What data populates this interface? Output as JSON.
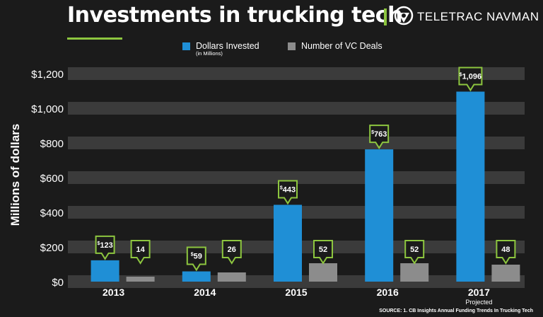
{
  "title": "Investments in trucking tech",
  "brand": {
    "name": "TELETRAC NAVMAN"
  },
  "legend": {
    "dollars_label": "Dollars Invested",
    "dollars_sub": "(in Millions)",
    "deals_label": "Number of VC Deals"
  },
  "colors": {
    "background": "#1b1b1b",
    "band": "#3b3b3b",
    "dollars": "#1f8fd6",
    "deals": "#8c8c8c",
    "accent": "#8dc63f",
    "text": "#ffffff"
  },
  "source": "SOURCE: 1. CB Insights Annual Funding Trends In Trucking Tech",
  "chart_data": {
    "type": "bar",
    "title": "Investments in trucking tech",
    "ylabel": "Millions of dollars",
    "xlabel": "",
    "ylim": [
      0,
      1200
    ],
    "yticks": [
      0,
      200,
      400,
      600,
      800,
      1000,
      1200
    ],
    "ytick_labels": [
      "$0",
      "$200",
      "$400",
      "$600",
      "$800",
      "$1,000",
      "$1,200"
    ],
    "categories": [
      "2013",
      "2014",
      "2015",
      "2016",
      "2017"
    ],
    "category_notes": [
      "",
      "",
      "",
      "",
      "Projected"
    ],
    "series": [
      {
        "name": "Dollars Invested",
        "values": [
          123,
          59,
          443,
          763,
          1096
        ],
        "labels": [
          "123",
          "59",
          "443",
          "763",
          "1,096"
        ],
        "label_prefix": "$"
      },
      {
        "name": "Number of VC Deals",
        "values": [
          14,
          26,
          52,
          52,
          48
        ],
        "labels": [
          "14",
          "26",
          "52",
          "52",
          "48"
        ],
        "label_prefix": ""
      }
    ]
  }
}
